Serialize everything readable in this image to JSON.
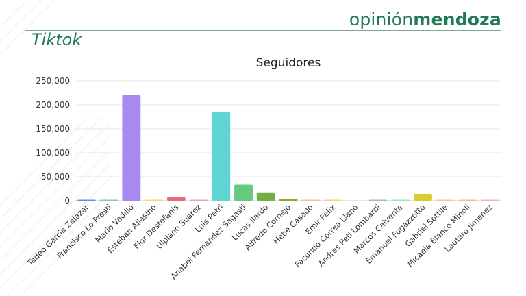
{
  "header": {
    "brand_light": "opinión",
    "brand_bold": "mendoza",
    "section": "Tiktok"
  },
  "colors": {
    "brand_green": "#1f7a55",
    "bars": [
      "#5b8def",
      "#8bc6c2",
      "#a988f2",
      "#ffd66b",
      "#e66b7e",
      "#f29bd0",
      "#5fd6d4",
      "#66c97f",
      "#77ad45",
      "#9aa02b",
      "#f3c09b",
      "#f5d67a",
      "#dcd6cf",
      "#a8b4c7",
      "#9fe0c8",
      "#d4cf2c",
      "#f7c59d",
      "#f7b7a5",
      "#f4b4c0"
    ]
  },
  "chart_data": {
    "type": "bar",
    "title": "Seguidores",
    "xlabel": "",
    "ylabel": "",
    "ylim": [
      0,
      250000
    ],
    "yticks": [
      0,
      50000,
      100000,
      150000,
      200000,
      250000
    ],
    "ytick_labels": [
      "0",
      "50,000",
      "100,000",
      "150,000",
      "200,000",
      "250,000"
    ],
    "grid": true,
    "categories": [
      "Tadeo Garcia Zalazar",
      "Francisco Lo Presti",
      "Mario Vadillo",
      "Esteban Allasino",
      "Flor Destefanis",
      "Ulpiano Suarez",
      "Luis Petri",
      "Anabel Fernandez Sagasti",
      "Lucas Ilardo",
      "Alfredo Cornejo",
      "Hebe Casado",
      "Emir Felix",
      "Facundo Correa Llano",
      "Andres Peti Lombardi",
      "Marcos Calvente",
      "Emanuel Fugazzotto",
      "Gabriel Sottile",
      "Micaela Blanco Minoli",
      "Lautaro Jimenez"
    ],
    "values": [
      1200,
      500,
      221000,
      2000,
      7500,
      1000,
      185000,
      33500,
      17500,
      4000,
      700,
      300,
      0,
      800,
      500,
      14500,
      500,
      600,
      900
    ]
  }
}
